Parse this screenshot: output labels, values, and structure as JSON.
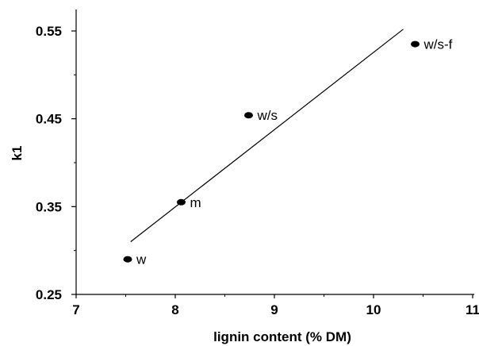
{
  "chart_data": {
    "type": "scatter",
    "title": "",
    "xlabel": "lignin content  (% DM)",
    "ylabel": "k1",
    "xlim": [
      7,
      11
    ],
    "ylim": [
      0.25,
      0.58
    ],
    "x_ticks": [
      7,
      8,
      9,
      10,
      11
    ],
    "x_tick_labels": [
      "7",
      "8",
      "9",
      "10",
      "11"
    ],
    "y_ticks": [
      0.25,
      0.35,
      0.45,
      0.55
    ],
    "y_tick_labels": [
      "0.25",
      "0.35",
      "0.45",
      "0.55"
    ],
    "grid": false,
    "legend": "none",
    "points": [
      {
        "label": "w",
        "x": 7.52,
        "y": 0.29
      },
      {
        "label": "m",
        "x": 8.06,
        "y": 0.355
      },
      {
        "label": "w/s",
        "x": 8.74,
        "y": 0.454
      },
      {
        "label": "w/s-f",
        "x": 10.42,
        "y": 0.535
      }
    ],
    "trendline": {
      "x": [
        7.55,
        10.3
      ],
      "y": [
        0.31,
        0.552
      ]
    },
    "colors": {
      "marker": "#000000",
      "line": "#000000",
      "background": "#ffffff"
    }
  }
}
